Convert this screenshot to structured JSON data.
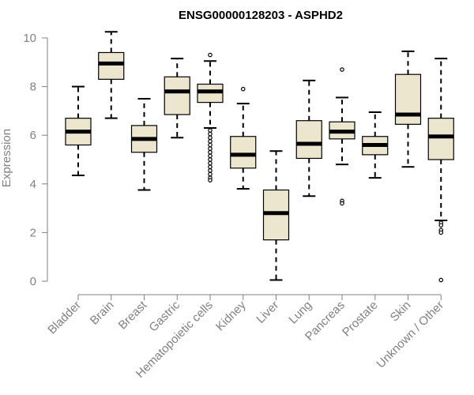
{
  "chart_data": {
    "type": "boxplot",
    "title": "ENSG00000128203 - ASPHD2",
    "xlabel": "",
    "ylabel": "Expression",
    "ylim": [
      0,
      10
    ],
    "yticks": [
      0,
      2,
      4,
      6,
      8,
      10
    ],
    "grid": false,
    "colors": {
      "box_fill": "#ede6ce",
      "stroke": "#000000",
      "axis": "#808080",
      "median": "#000000"
    },
    "categories": [
      "Bladder",
      "Brain",
      "Breast",
      "Gastric",
      "Hematopoietic cells",
      "Kidney",
      "Liver",
      "Lung",
      "Pancreas",
      "Prostate",
      "Skin",
      "Unknown / Other"
    ],
    "boxes": [
      {
        "category": "Bladder",
        "whisker_low": 4.35,
        "q1": 5.6,
        "median": 6.15,
        "q3": 6.7,
        "whisker_high": 8.0,
        "outliers": []
      },
      {
        "category": "Brain",
        "whisker_low": 6.7,
        "q1": 8.3,
        "median": 8.95,
        "q3": 9.4,
        "whisker_high": 10.25,
        "outliers": []
      },
      {
        "category": "Breast",
        "whisker_low": 3.75,
        "q1": 5.3,
        "median": 5.85,
        "q3": 6.4,
        "whisker_high": 7.5,
        "outliers": []
      },
      {
        "category": "Gastric",
        "whisker_low": 5.9,
        "q1": 6.85,
        "median": 7.8,
        "q3": 8.4,
        "whisker_high": 9.15,
        "outliers": []
      },
      {
        "category": "Hematopoietic cells",
        "whisker_low": 6.3,
        "q1": 7.35,
        "median": 7.8,
        "q3": 8.1,
        "whisker_high": 9.05,
        "outliers": [
          9.3,
          6.2,
          6.05,
          5.9,
          5.75,
          5.6,
          5.45,
          5.3,
          5.15,
          5.0,
          4.85,
          4.7,
          4.55,
          4.4,
          4.25,
          4.15
        ]
      },
      {
        "category": "Kidney",
        "whisker_low": 3.8,
        "q1": 4.65,
        "median": 5.2,
        "q3": 5.95,
        "whisker_high": 7.3,
        "outliers": [
          7.9
        ]
      },
      {
        "category": "Liver",
        "whisker_low": 0.05,
        "q1": 1.7,
        "median": 2.8,
        "q3": 3.75,
        "whisker_high": 5.35,
        "outliers": []
      },
      {
        "category": "Lung",
        "whisker_low": 3.5,
        "q1": 5.05,
        "median": 5.65,
        "q3": 6.6,
        "whisker_high": 8.25,
        "outliers": []
      },
      {
        "category": "Pancreas",
        "whisker_low": 4.8,
        "q1": 5.85,
        "median": 6.15,
        "q3": 6.55,
        "whisker_high": 7.55,
        "outliers": [
          8.7,
          3.3,
          3.2
        ]
      },
      {
        "category": "Prostate",
        "whisker_low": 4.25,
        "q1": 5.2,
        "median": 5.6,
        "q3": 5.95,
        "whisker_high": 6.95,
        "outliers": []
      },
      {
        "category": "Skin",
        "whisker_low": 4.7,
        "q1": 6.45,
        "median": 6.85,
        "q3": 8.5,
        "whisker_high": 9.45,
        "outliers": []
      },
      {
        "category": "Unknown / Other",
        "whisker_low": 2.5,
        "q1": 5.0,
        "median": 5.95,
        "q3": 6.7,
        "whisker_high": 9.15,
        "outliers": [
          2.4,
          2.3,
          2.1,
          2.0,
          0.05
        ]
      }
    ]
  }
}
